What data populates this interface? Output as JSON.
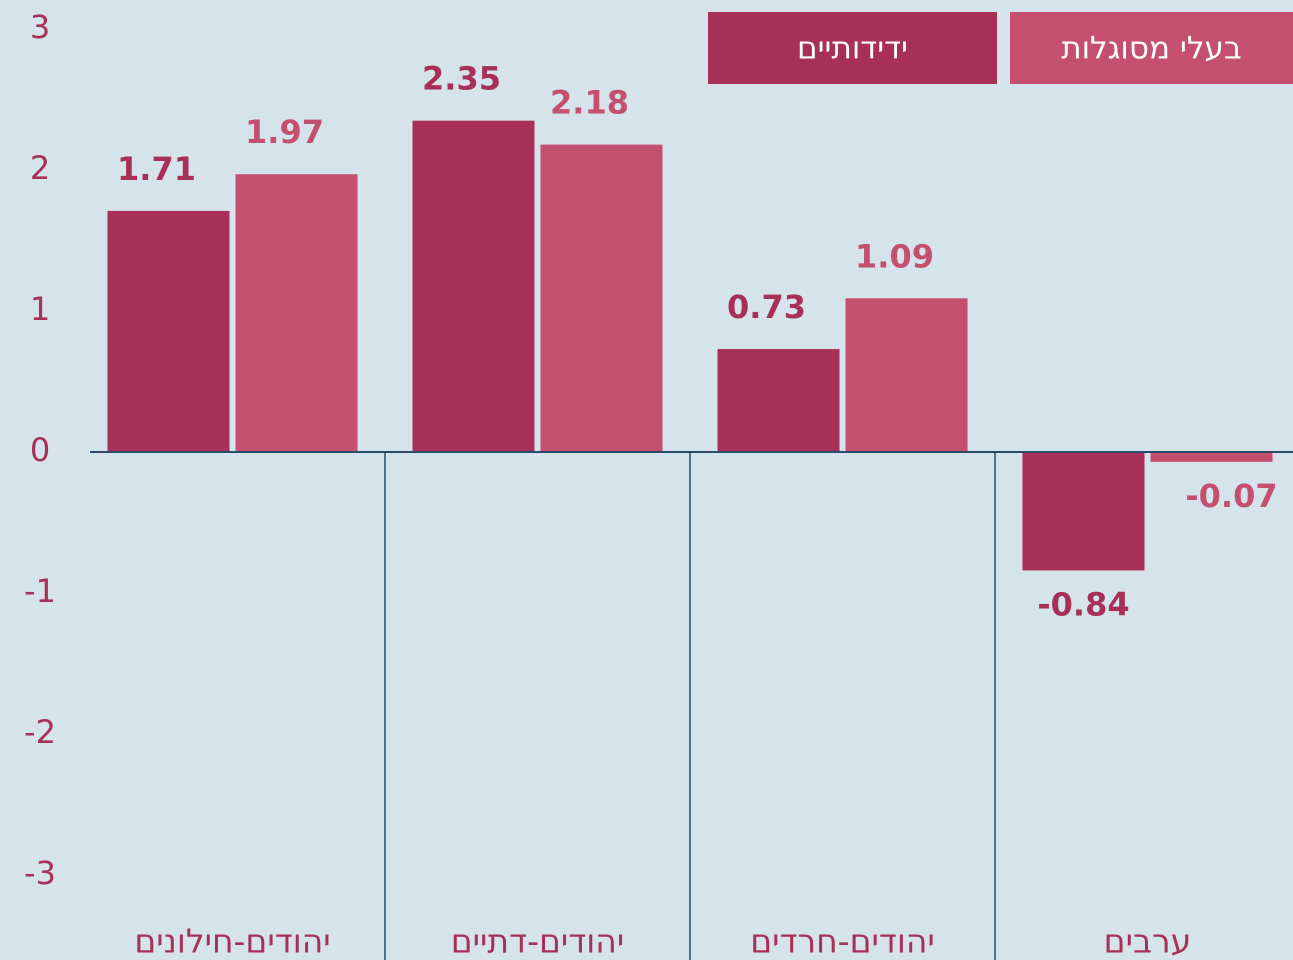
{
  "chart_data": {
    "type": "bar",
    "categories": [
      "יהודים-חילונים",
      "יהודים-דתיים",
      "יהודים-חרדים",
      "ערבים"
    ],
    "series": [
      {
        "name": "ידידותיים",
        "color": "#a82f57",
        "values": [
          1.71,
          2.35,
          0.73,
          -0.84
        ]
      },
      {
        "name": "בעלי מסוגלות",
        "color": "#c44f6e",
        "values": [
          1.97,
          2.18,
          1.09,
          -0.07
        ]
      }
    ],
    "ylim": [
      -3,
      3
    ],
    "yticks": [
      -3,
      -2,
      -1,
      0,
      1,
      2,
      3
    ],
    "grid": false
  }
}
